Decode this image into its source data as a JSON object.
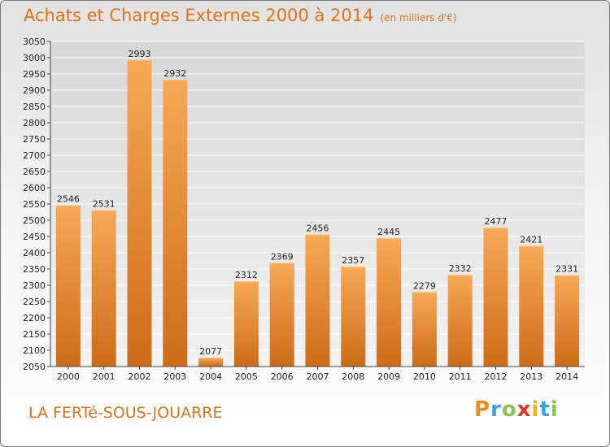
{
  "header": {
    "title": "Achats et Charges Externes 2000 à 2014",
    "subtitle": "(en milliers d'€)"
  },
  "footer": {
    "city": "LA FERTé-SOUS-JOUARRE",
    "logo_letters": [
      "P",
      "r",
      "o",
      "x",
      "i",
      "t",
      "i"
    ],
    "logo_colors": [
      "#f08a1c",
      "#3aa0e0",
      "#8bc34a",
      "#e6322a",
      "#f0b21c",
      "#3aa0e0",
      "#8bc34a"
    ]
  },
  "chart_data": {
    "type": "bar",
    "title": "Achats et Charges Externes 2000 à 2014",
    "subtitle": "(en milliers d'€)",
    "categories": [
      "2000",
      "2001",
      "2002",
      "2003",
      "2004",
      "2005",
      "2006",
      "2007",
      "2008",
      "2009",
      "2010",
      "2011",
      "2012",
      "2013",
      "2014"
    ],
    "values": [
      2546,
      2531,
      2993,
      2932,
      2077,
      2312,
      2369,
      2456,
      2357,
      2445,
      2279,
      2332,
      2477,
      2421,
      2331
    ],
    "ylim": [
      2050,
      3050
    ],
    "yticks": [
      2050,
      2100,
      2150,
      2200,
      2250,
      2300,
      2350,
      2400,
      2450,
      2500,
      2550,
      2600,
      2650,
      2700,
      2750,
      2800,
      2850,
      2900,
      2950,
      3000,
      3050
    ],
    "grid": true,
    "bar_color": "#ee8a2e",
    "bar_color_light": "#f7a955",
    "bar_color_dark": "#cd6c17"
  }
}
